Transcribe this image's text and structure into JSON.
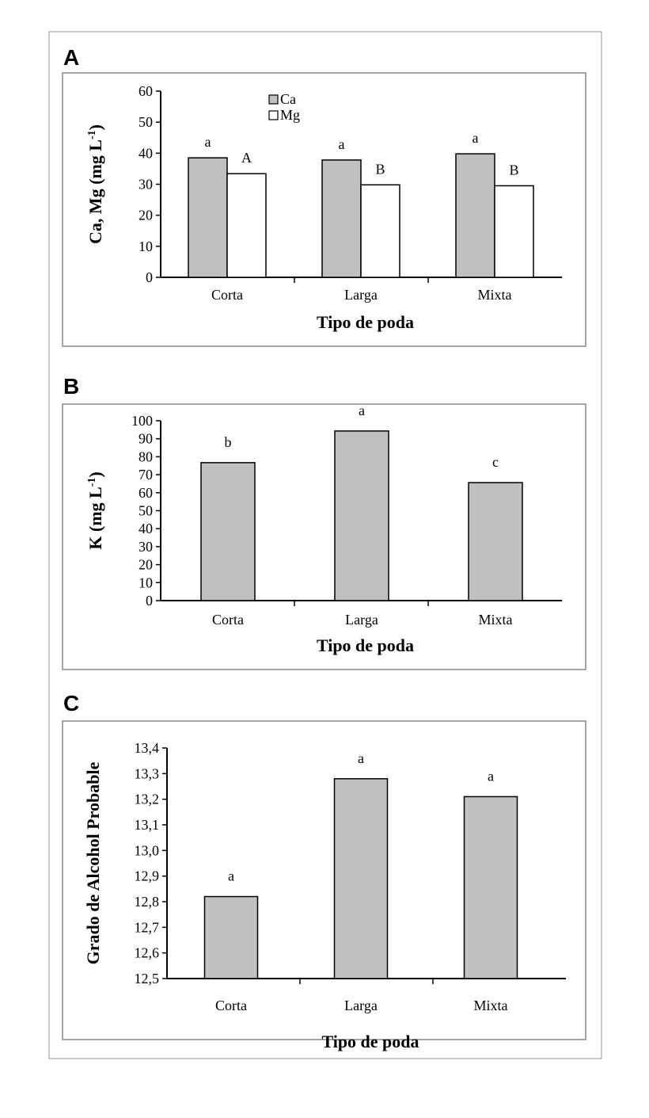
{
  "chart_data": [
    {
      "panel": "A",
      "type": "bar",
      "categories": [
        "Corta",
        "Larga",
        "Mixta"
      ],
      "series": [
        {
          "name": "Ca",
          "values": [
            38.5,
            37.8,
            39.8
          ],
          "color": "#c0c0c0",
          "letters": [
            "a",
            "a",
            "a"
          ]
        },
        {
          "name": "Mg",
          "values": [
            33.4,
            29.8,
            29.5
          ],
          "color": "#ffffff",
          "letters": [
            "A",
            "B",
            "B"
          ]
        }
      ],
      "xlabel": "Tipo de poda",
      "ylabel": "Ca, Mg (mg L",
      "ylabel_sup": "-1",
      "ylabel_end": ")",
      "ylim": [
        0,
        60
      ],
      "yticks": [
        "0",
        "10",
        "20",
        "30",
        "40",
        "50",
        "60"
      ],
      "legend": "top-left"
    },
    {
      "panel": "B",
      "type": "bar",
      "categories": [
        "Corta",
        "Larga",
        "Mixta"
      ],
      "series": [
        {
          "values": [
            76.7,
            94.3,
            65.6
          ],
          "color": "#c0c0c0",
          "letters": [
            "b",
            "a",
            "c"
          ]
        }
      ],
      "xlabel": "Tipo de poda",
      "ylabel": "K (mg L",
      "ylabel_sup": "-1",
      "ylabel_end": ")",
      "ylim": [
        0,
        100
      ],
      "yticks": [
        "0",
        "10",
        "20",
        "30",
        "40",
        "50",
        "60",
        "70",
        "80",
        "90",
        "100"
      ]
    },
    {
      "panel": "C",
      "type": "bar",
      "categories": [
        "Corta",
        "Larga",
        "Mixta"
      ],
      "series": [
        {
          "values": [
            12.82,
            13.28,
            13.21
          ],
          "color": "#c0c0c0",
          "letters": [
            "a",
            "a",
            "a"
          ]
        }
      ],
      "xlabel": "Tipo de poda",
      "ylabel": "Grado de Alcohol Probable",
      "ylim": [
        12.5,
        13.4
      ],
      "yticks": [
        "12,5",
        "12,6",
        "12,7",
        "12,8",
        "12,9",
        "13,0",
        "13,1",
        "13,2",
        "13,3",
        "13,4"
      ]
    }
  ]
}
